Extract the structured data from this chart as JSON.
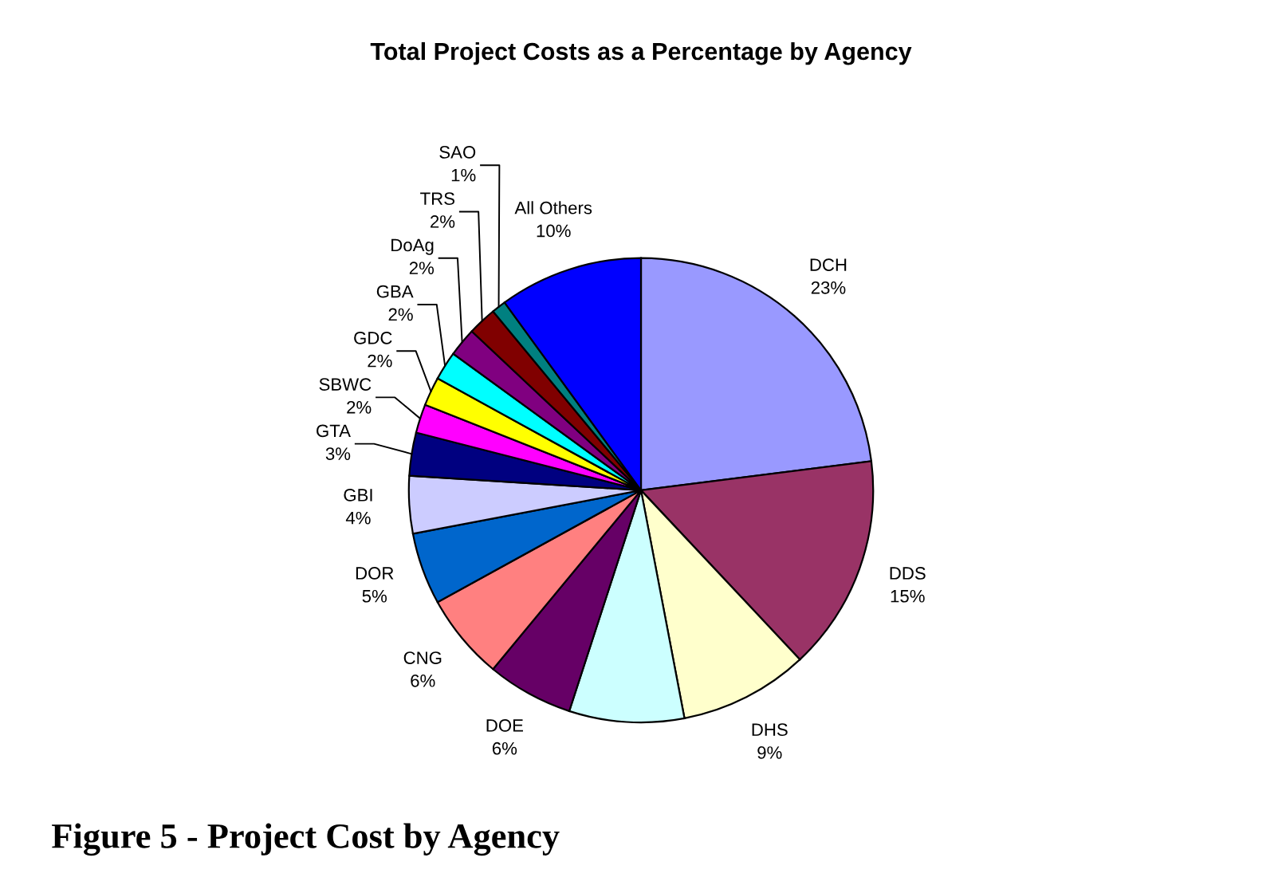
{
  "chart_data": {
    "type": "pie",
    "title": "Total Project Costs as a Percentage by Agency",
    "categories": [
      "DCH",
      "DDS",
      "DHS",
      null,
      "DOE",
      "CNG",
      "DOR",
      "GBI",
      "GTA",
      "SBWC",
      "GDC",
      "GBA",
      "DoAg",
      "TRS",
      "SAO",
      "All Others"
    ],
    "values": [
      23,
      15,
      9,
      8,
      6,
      6,
      5,
      4,
      3,
      2,
      2,
      2,
      2,
      2,
      1,
      10
    ],
    "value_labels": [
      "23%",
      "15%",
      "9%",
      null,
      "6%",
      "6%",
      "5%",
      "4%",
      "3%",
      "2%",
      "2%",
      "2%",
      "2%",
      "2%",
      "1%",
      "10%"
    ],
    "colors": [
      "#9999ff",
      "#993366",
      "#ffffcc",
      "#ccffff",
      "#660066",
      "#ff8080",
      "#0066cc",
      "#ccccff",
      "#000080",
      "#ff00ff",
      "#ffff00",
      "#00ffff",
      "#800080",
      "#800000",
      "#008080",
      "#0000ff"
    ],
    "legend": false,
    "annotations": [
      "Figure 5 - Project Cost by Agency"
    ]
  }
}
